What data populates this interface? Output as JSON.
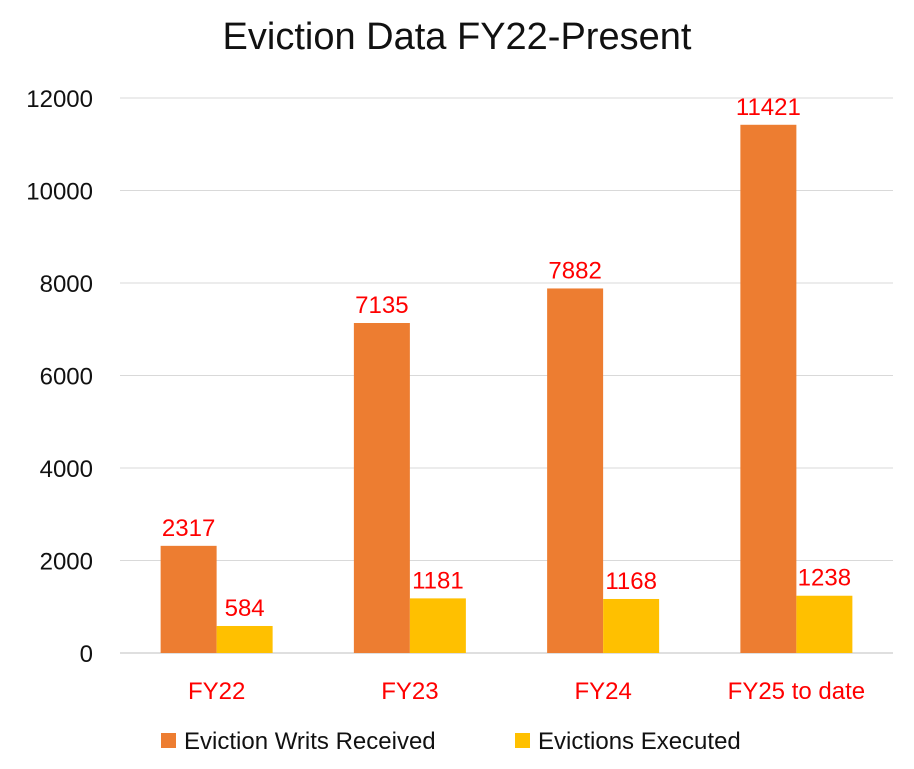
{
  "chart_data": {
    "type": "bar",
    "title": "Eviction Data FY22-Present",
    "categories": [
      "FY22",
      "FY23",
      "FY24",
      "FY25 to date"
    ],
    "series": [
      {
        "name": "Eviction Writs Received",
        "values": [
          2317,
          7135,
          7882,
          11421
        ],
        "color": "#ED7D31"
      },
      {
        "name": "Evictions Executed",
        "values": [
          584,
          1181,
          1168,
          1238
        ],
        "color": "#FFC000"
      }
    ],
    "ylim": [
      0,
      12000
    ],
    "yticks": [
      0,
      2000,
      4000,
      6000,
      8000,
      10000,
      12000
    ],
    "grid": true,
    "legend": "bottom",
    "label_color": "#FF0000"
  }
}
